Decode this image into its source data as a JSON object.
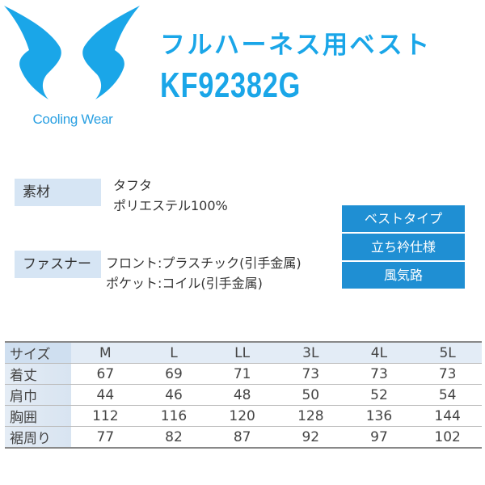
{
  "logo": {
    "brand_text": "Cooling Wear",
    "color": "#1aa6e8"
  },
  "header": {
    "title": "フルハーネス用ベスト",
    "model": "KF92382G"
  },
  "specs": {
    "material_label": "素材",
    "material_lines": [
      "タフタ",
      "ポリエステル100%"
    ],
    "fastener_label": "ファスナー",
    "fastener_lines": [
      "フロント:プラスチック(引手金属)",
      "ポケット:コイル(引手金属)"
    ]
  },
  "features": [
    "ベストタイプ",
    "立ち衿仕様",
    "風気路"
  ],
  "size_table": {
    "header_label": "サイズ",
    "sizes": [
      "M",
      "L",
      "LL",
      "3L",
      "4L",
      "5L"
    ],
    "rows": [
      {
        "label": "着丈",
        "values": [
          "67",
          "69",
          "71",
          "73",
          "73",
          "73"
        ]
      },
      {
        "label": "肩巾",
        "values": [
          "44",
          "46",
          "48",
          "50",
          "52",
          "54"
        ]
      },
      {
        "label": "胸囲",
        "values": [
          "112",
          "116",
          "120",
          "128",
          "136",
          "144"
        ]
      },
      {
        "label": "裾周り",
        "values": [
          "77",
          "82",
          "87",
          "92",
          "97",
          "102"
        ]
      }
    ]
  }
}
